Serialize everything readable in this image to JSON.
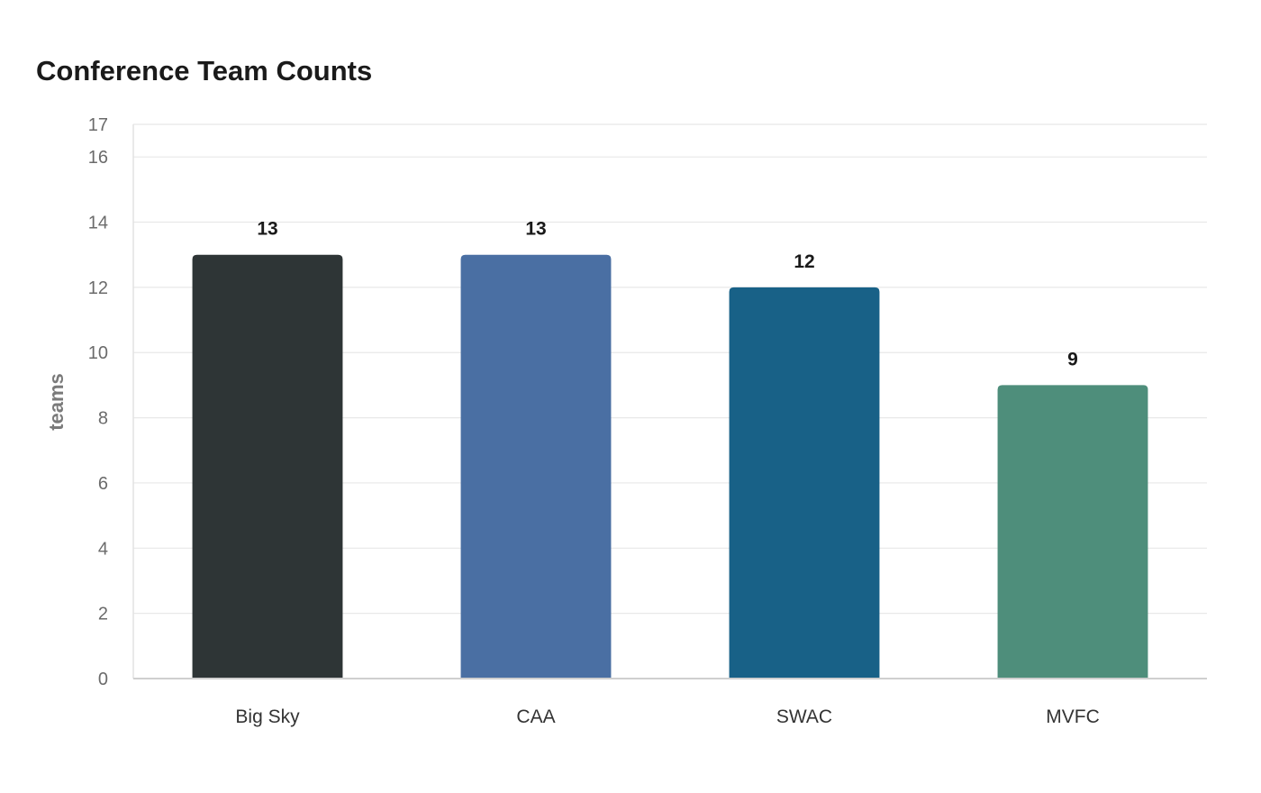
{
  "chart_data": {
    "type": "bar",
    "title": "Conference Team Counts",
    "xlabel": "",
    "ylabel": "teams",
    "categories": [
      "Big Sky",
      "CAA",
      "SWAC",
      "MVFC"
    ],
    "values": [
      13,
      13,
      12,
      9
    ],
    "data_labels": [
      "13",
      "13",
      "12",
      "9"
    ],
    "colors": [
      "#2e3536",
      "#4a6fa3",
      "#186187",
      "#4e8e7b"
    ],
    "ylim": [
      0,
      17
    ],
    "yticks": [
      0,
      2,
      4,
      6,
      8,
      10,
      12,
      14,
      16,
      17
    ],
    "ytick_labels": [
      "0",
      "2",
      "4",
      "6",
      "8",
      "10",
      "12",
      "14",
      "16",
      "17"
    ],
    "grid": true,
    "legend": "none"
  }
}
